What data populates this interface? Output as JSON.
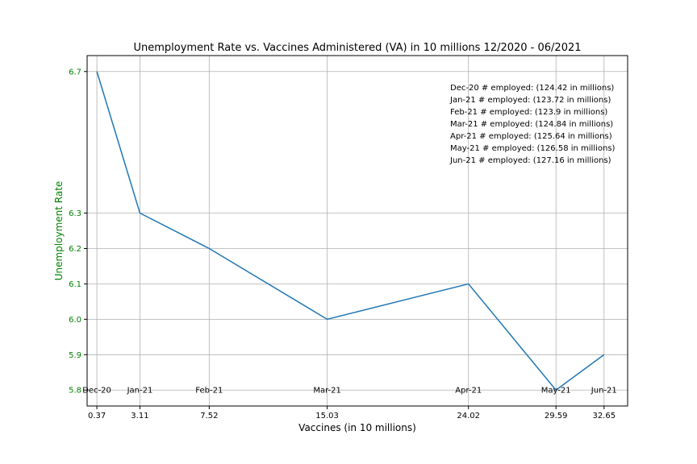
{
  "chart_data": {
    "type": "line",
    "title": "Unemployment Rate vs. Vaccines Administered (VA) in 10 millions 12/2020 - 06/2021",
    "xlabel": "Vaccines (in 10 millions)",
    "ylabel": "Unemployment Rate",
    "ylabel_color": "#008000",
    "ytick_color": "#008000",
    "line_color": "#1f77b4",
    "grid": true,
    "xlim": [
      -0.25,
      34.15
    ],
    "ylim": [
      5.755,
      6.745
    ],
    "x": [
      0.37,
      3.11,
      7.52,
      15.03,
      24.02,
      29.59,
      32.65
    ],
    "xtick_labels": [
      "0.37",
      "3.11",
      "7.52",
      "15.03",
      "24.02",
      "29.59",
      "32.65"
    ],
    "y": [
      6.7,
      6.3,
      6.2,
      6.0,
      6.1,
      5.8,
      5.9
    ],
    "ytick_labels": [
      "5.8",
      "5.9",
      "6.0",
      "6.1",
      "6.2",
      "6.3",
      "6.7"
    ],
    "point_labels": [
      "Dec-20",
      "Jan-21",
      "Feb-21",
      "Mar-21",
      "Apr-21",
      "May-21",
      "Jun-21"
    ],
    "legend_placement": "top-right",
    "annotations": [
      "Dec-20 # employed: (124.42 in millions)",
      "Jan-21 # employed: (123.72 in millions)",
      "Feb-21 # employed: (123.9 in millions)",
      "Mar-21 # employed: (124.84 in millions)",
      "Apr-21 # employed: (125.64 in millions)",
      "May-21 # employed: (126.58 in millions)",
      "Jun-21 # employed: (127.16 in millions)"
    ]
  }
}
